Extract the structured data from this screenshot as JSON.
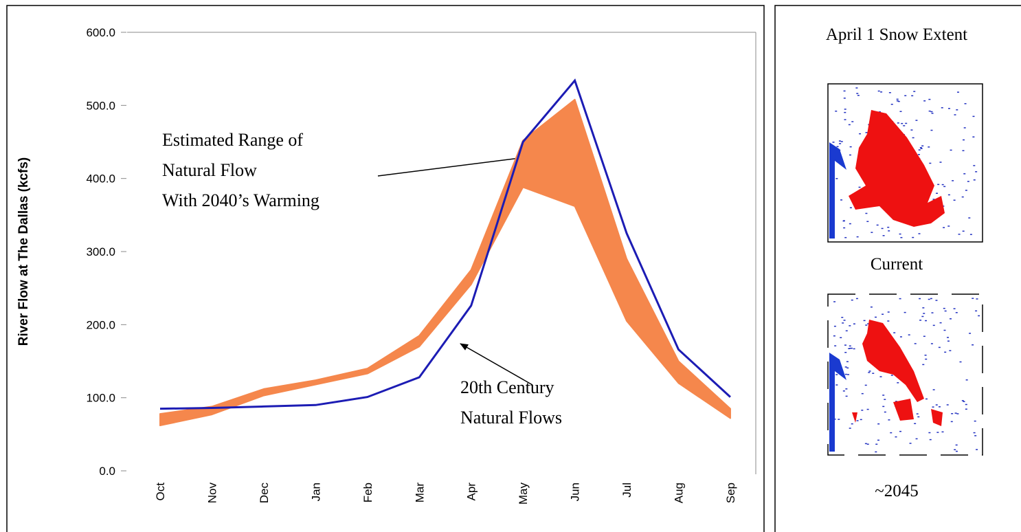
{
  "chart_data": {
    "type": "line",
    "y_label": "River Flow at The Dallas (kcfs)",
    "categories": [
      "Oct",
      "Nov",
      "Dec",
      "Jan",
      "Feb",
      "Mar",
      "Apr",
      "May",
      "Jun",
      "Jul",
      "Aug",
      "Sep"
    ],
    "line": {
      "color": "#1c1cb4",
      "values": [
        85,
        86,
        88,
        90,
        101,
        128,
        226,
        450,
        534,
        325,
        166,
        101
      ]
    },
    "band": {
      "color": "#f5874c",
      "lower": [
        62,
        77,
        103,
        118,
        133,
        170,
        255,
        388,
        362,
        205,
        120,
        72
      ],
      "upper": [
        78,
        88,
        112,
        124,
        140,
        185,
        275,
        452,
        508,
        290,
        150,
        85
      ]
    },
    "ylim": [
      0,
      600
    ],
    "yticks": [
      {
        "value": 0,
        "label": "0.0"
      },
      {
        "value": 100,
        "label": "100.0"
      },
      {
        "value": 200,
        "label": "200.0"
      },
      {
        "value": 300,
        "label": "300.0"
      },
      {
        "value": 400,
        "label": "400.0"
      },
      {
        "value": 500,
        "label": "500.0"
      },
      {
        "value": 600,
        "label": "600.0"
      }
    ],
    "annotations": {
      "range": [
        "Estimated Range of",
        "Natural Flow",
        "With 2040’s Warming"
      ],
      "historic": [
        "20th Century",
        "Natural Flows"
      ]
    }
  },
  "side_panel": {
    "title": "April 1 Snow Extent",
    "maps": [
      "Current",
      "~2045"
    ]
  }
}
